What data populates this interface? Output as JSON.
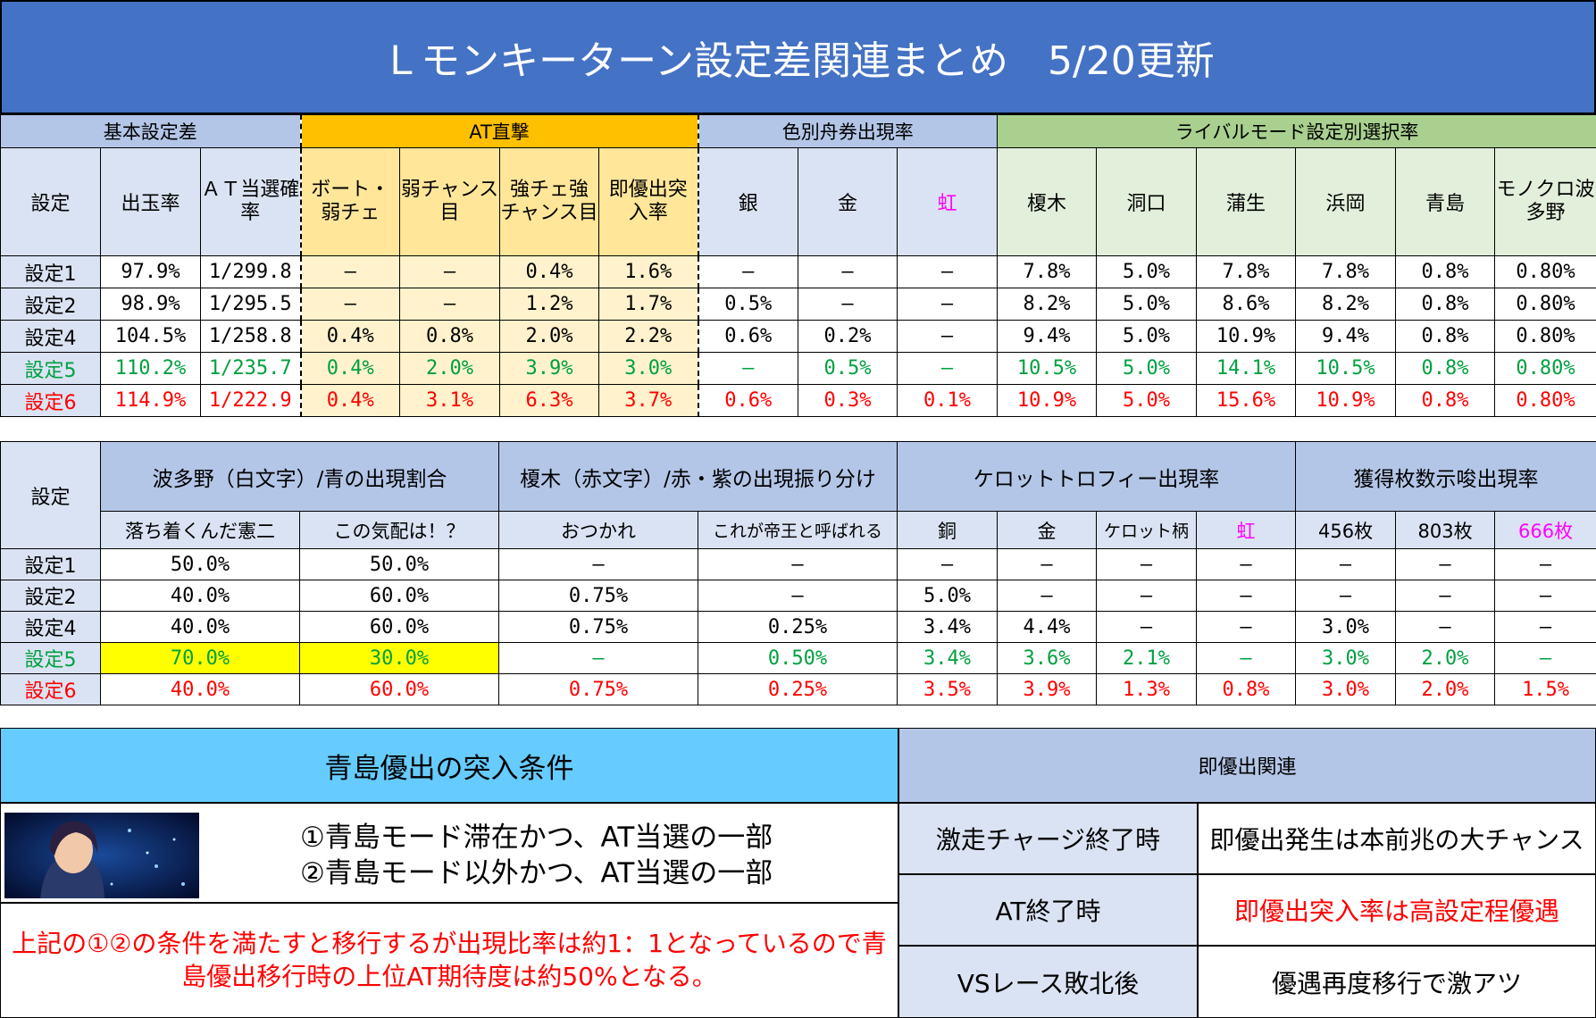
{
  "title": "Ｌモンキーターン設定差関連まとめ　5/20更新",
  "table1": {
    "groups": [
      "基本設定差",
      "AT直撃",
      "色別舟券出現率",
      "ライバルモード設定別選択率"
    ],
    "cols": [
      "設定",
      "出玉率",
      "ＡＴ当選確率",
      "ボート・弱チェ",
      "弱チャンス目",
      "強チェ強チャンス目",
      "即優出突入率",
      "銀",
      "金",
      "虹",
      "榎木",
      "洞口",
      "蒲生",
      "浜岡",
      "青島",
      "モノクロ波多野"
    ],
    "rows": [
      {
        "label": "設定1",
        "vals": [
          "97.9%",
          "1/299.8",
          "–",
          "–",
          "0.4%",
          "1.6%",
          "–",
          "–",
          "–",
          "7.8%",
          "5.0%",
          "7.8%",
          "7.8%",
          "0.8%",
          "0.80%"
        ]
      },
      {
        "label": "設定2",
        "vals": [
          "98.9%",
          "1/295.5",
          "–",
          "–",
          "1.2%",
          "1.7%",
          "0.5%",
          "–",
          "–",
          "8.2%",
          "5.0%",
          "8.6%",
          "8.2%",
          "0.8%",
          "0.80%"
        ]
      },
      {
        "label": "設定4",
        "vals": [
          "104.5%",
          "1/258.8",
          "0.4%",
          "0.8%",
          "2.0%",
          "2.2%",
          "0.6%",
          "0.2%",
          "–",
          "9.4%",
          "5.0%",
          "10.9%",
          "9.4%",
          "0.8%",
          "0.80%"
        ]
      },
      {
        "label": "設定5",
        "vals": [
          "110.2%",
          "1/235.7",
          "0.4%",
          "2.0%",
          "3.9%",
          "3.0%",
          "–",
          "0.5%",
          "–",
          "10.5%",
          "5.0%",
          "14.1%",
          "10.5%",
          "0.8%",
          "0.80%"
        ]
      },
      {
        "label": "設定6",
        "vals": [
          "114.9%",
          "1/222.9",
          "0.4%",
          "3.1%",
          "6.3%",
          "3.7%",
          "0.6%",
          "0.3%",
          "0.1%",
          "10.9%",
          "5.0%",
          "15.6%",
          "10.9%",
          "0.8%",
          "0.80%"
        ]
      }
    ]
  },
  "table2": {
    "setting_label": "設定",
    "groups": [
      "波多野（白文字）/青の出現割合",
      "榎木（赤文字）/赤・紫の出現振り分け",
      "ケロットトロフィー出現率",
      "獲得枚数示唆出現率"
    ],
    "cols": [
      "落ち着くんだ憲二",
      "この気配は！？",
      "おつかれ",
      "これが帝王と呼ばれる",
      "銅",
      "金",
      "ケロット柄",
      "虹",
      "456枚",
      "803枚",
      "666枚"
    ],
    "rows": [
      {
        "label": "設定1",
        "vals": [
          "50.0%",
          "50.0%",
          "–",
          "–",
          "–",
          "–",
          "–",
          "–",
          "–",
          "–",
          "–"
        ]
      },
      {
        "label": "設定2",
        "vals": [
          "40.0%",
          "60.0%",
          "0.75%",
          "–",
          "5.0%",
          "–",
          "–",
          "–",
          "–",
          "–",
          "–"
        ]
      },
      {
        "label": "設定4",
        "vals": [
          "40.0%",
          "60.0%",
          "0.75%",
          "0.25%",
          "3.4%",
          "4.4%",
          "–",
          "–",
          "3.0%",
          "–",
          "–"
        ]
      },
      {
        "label": "設定5",
        "vals": [
          "70.0%",
          "30.0%",
          "–",
          "0.50%",
          "3.4%",
          "3.6%",
          "2.1%",
          "–",
          "3.0%",
          "2.0%",
          "–"
        ]
      },
      {
        "label": "設定6",
        "vals": [
          "40.0%",
          "60.0%",
          "0.75%",
          "0.25%",
          "3.5%",
          "3.9%",
          "1.3%",
          "0.8%",
          "3.0%",
          "2.0%",
          "1.5%"
        ]
      }
    ]
  },
  "aoshima": {
    "title": "青島優出の突入条件",
    "cond1": "①青島モード滞在かつ、AT当選の一部",
    "cond2": "②青島モード以外かつ、AT当選の一部",
    "note": "上記の①②の条件を満たすと移行するが出現比率は約1：1となっているので青島優出移行時の上位AT期待度は約50%となる。"
  },
  "sokuyu": {
    "title": "即優出関連",
    "rows": [
      {
        "label": "激走チャージ終了時",
        "value": "即優出発生は本前兆の大チャンス"
      },
      {
        "label": "AT終了時",
        "value": "即優出突入率は高設定程優遇"
      },
      {
        "label": "VSレース敗北後",
        "value": "優遇再度移行で激アツ"
      }
    ]
  }
}
